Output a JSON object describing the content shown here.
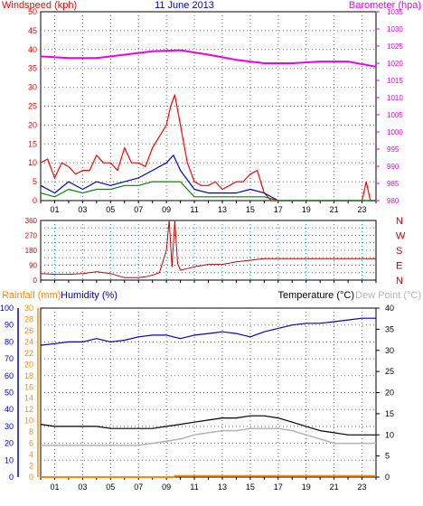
{
  "header": {
    "wind_title": "Windspeed (kph)",
    "date": "11 June 2013",
    "baro_title": "Barometer (hpa)"
  },
  "bottom_header": {
    "rain_title": "Rainfall (mm)",
    "humidity_title": "Humidity (%)",
    "temp_title": "Temperature (°C)",
    "dew_title": "Dew Point (°C)"
  },
  "hour_ticks": [
    "01",
    "03",
    "05",
    "07",
    "09",
    "11",
    "13",
    "15",
    "17",
    "19",
    "21",
    "23"
  ],
  "direction_letters": [
    "N",
    "W",
    "S",
    "E",
    "N"
  ],
  "colors": {
    "wind_gust": "#ff0000",
    "wind_avg": "#0000cc",
    "wind_min": "#008800",
    "barometer": "#ee00ee",
    "direction": "#cc0000",
    "humidity": "#0000cc",
    "temperature": "#000000",
    "dew_point": "#b4b4b4",
    "rainfall": "#ff8800",
    "grid": "#009999"
  },
  "chart_data": [
    {
      "type": "line",
      "title": "11 June 2013",
      "x_unit": "hour",
      "xlim": [
        0,
        24
      ],
      "y_left": {
        "label": "Windspeed (kph)",
        "lim": [
          0,
          50
        ],
        "ticks": [
          0,
          5,
          10,
          15,
          20,
          25,
          30,
          35,
          40,
          45,
          50
        ]
      },
      "y_right": {
        "label": "Barometer (hpa)",
        "lim": [
          980,
          1035
        ],
        "ticks": [
          980,
          985,
          990,
          995,
          1000,
          1005,
          1010,
          1015,
          1020,
          1025,
          1030,
          1035
        ]
      },
      "series": [
        {
          "name": "Windspeed (kph)",
          "role": "gust",
          "x": [
            0,
            0.5,
            1,
            1.5,
            2,
            2.5,
            3,
            3.5,
            4,
            4.5,
            5,
            5.5,
            6,
            6.5,
            7,
            7.5,
            8,
            8.5,
            9,
            9.3,
            9.6,
            10,
            10.5,
            11,
            11.5,
            12,
            12.5,
            13,
            13.5,
            14,
            14.5,
            15,
            15.5,
            16,
            16.5,
            17,
            18,
            19,
            20,
            20.5,
            21,
            21.5,
            22,
            22.5,
            23,
            23.3,
            23.6,
            24
          ],
          "y": [
            10,
            11,
            6,
            10,
            9,
            7,
            8,
            8,
            12,
            10,
            10,
            8,
            14,
            10,
            10,
            9,
            14,
            17,
            20,
            25,
            28,
            20,
            10,
            5,
            4,
            4,
            5,
            3,
            4,
            5,
            5,
            7,
            8,
            2,
            0,
            0,
            0,
            0,
            0,
            0,
            0,
            0,
            0,
            0,
            0,
            5,
            0,
            0
          ]
        },
        {
          "name": "Windspeed (kph)",
          "role": "average",
          "x": [
            0,
            1,
            2,
            3,
            4,
            5,
            6,
            7,
            8,
            9,
            9.5,
            10,
            11,
            12,
            13,
            14,
            15,
            16,
            17,
            24
          ],
          "y": [
            4,
            2,
            5,
            3,
            5,
            4,
            5,
            6,
            8,
            10,
            12,
            8,
            3,
            2,
            2,
            2,
            3,
            2,
            0,
            0
          ]
        },
        {
          "name": "Windspeed (kph)",
          "role": "lowest",
          "x": [
            0,
            1,
            2,
            3,
            4,
            5,
            6,
            7,
            8,
            9,
            10,
            11,
            12,
            13,
            14,
            15,
            16,
            17,
            24
          ],
          "y": [
            2,
            1,
            3,
            2,
            3,
            3,
            4,
            4,
            5,
            5,
            5,
            1,
            1,
            1,
            1,
            1,
            1,
            0,
            0
          ]
        },
        {
          "name": "Barometer (hpa)",
          "axis": "right",
          "x": [
            0,
            2,
            4,
            6,
            8,
            10,
            12,
            14,
            16,
            18,
            20,
            22,
            24
          ],
          "y": [
            1022,
            1021.5,
            1021.5,
            1022.5,
            1023.5,
            1023.8,
            1022.5,
            1021,
            1020,
            1020,
            1020.5,
            1020.5,
            1019
          ]
        }
      ]
    },
    {
      "type": "line",
      "title": "",
      "xlim": [
        0,
        24
      ],
      "y_left": {
        "label": "",
        "lim": [
          0,
          360
        ],
        "ticks": [
          0,
          45,
          90,
          135,
          180,
          225,
          270,
          315,
          360
        ]
      },
      "right_labels": [
        "N",
        "W",
        "S",
        "E",
        "N"
      ],
      "series": [
        {
          "name": "",
          "x": [
            0,
            1,
            2,
            3,
            4,
            5,
            6,
            7,
            7.5,
            8,
            8.5,
            9,
            9.2,
            9.4,
            9.6,
            9.8,
            10,
            10.5,
            11,
            12,
            13,
            14,
            15,
            16,
            17,
            18,
            19,
            20,
            21,
            22,
            23,
            24
          ],
          "y": [
            40,
            35,
            35,
            40,
            50,
            40,
            15,
            15,
            20,
            30,
            45,
            180,
            360,
            80,
            360,
            100,
            60,
            70,
            80,
            95,
            95,
            110,
            120,
            130,
            130,
            130,
            130,
            130,
            130,
            130,
            130,
            130
          ]
        }
      ]
    },
    {
      "type": "line",
      "title": "",
      "xlim": [
        0,
        24
      ],
      "y_left_humidity": {
        "label": "Humidity (%)",
        "lim": [
          0,
          100
        ],
        "ticks": [
          0,
          10,
          20,
          30,
          40,
          50,
          60,
          70,
          80,
          90,
          100
        ]
      },
      "y_left_rainfall": {
        "label": "Rainfall (mm)",
        "lim": [
          0,
          30
        ],
        "ticks": [
          0,
          2,
          4,
          6,
          8,
          10,
          12,
          14,
          16,
          18,
          20,
          22,
          24,
          26,
          28,
          30
        ]
      },
      "y_right": {
        "label": "Temperature (°C)",
        "lim": [
          0,
          40
        ],
        "ticks": [
          0,
          5,
          10,
          15,
          20,
          25,
          30,
          35,
          40
        ]
      },
      "series": [
        {
          "name": "Humidity (%)",
          "axis": "humidity",
          "x": [
            0,
            1,
            2,
            3,
            4,
            5,
            6,
            7,
            8,
            9,
            10,
            11,
            12,
            13,
            14,
            15,
            16,
            17,
            18,
            19,
            20,
            21,
            22,
            23,
            24
          ],
          "y": [
            78,
            79,
            80,
            80,
            82,
            80,
            81,
            83,
            84,
            84,
            82,
            84,
            85,
            86,
            85,
            83,
            86,
            88,
            90,
            91,
            91,
            92,
            93,
            94,
            94
          ]
        },
        {
          "name": "Temperature (°C)",
          "axis": "right",
          "x": [
            0,
            1,
            2,
            3,
            4,
            5,
            6,
            7,
            8,
            9,
            10,
            11,
            12,
            13,
            14,
            15,
            16,
            17,
            18,
            19,
            20,
            21,
            22,
            23,
            24
          ],
          "y": [
            12.5,
            12,
            12,
            12,
            12,
            11.5,
            11.5,
            11.5,
            11.5,
            12,
            12.5,
            13,
            13.5,
            14,
            14,
            14.5,
            14.5,
            14,
            13,
            12,
            11,
            10.5,
            10,
            10,
            10
          ]
        },
        {
          "name": "Dew Point (°C)",
          "axis": "right",
          "x": [
            0,
            1,
            2,
            3,
            4,
            5,
            6,
            7,
            8,
            9,
            10,
            11,
            12,
            13,
            14,
            15,
            16,
            17,
            18,
            19,
            20,
            21,
            22,
            23,
            24
          ],
          "y": [
            7.5,
            7.5,
            7.5,
            7.5,
            7.5,
            7.5,
            7.5,
            7.5,
            8,
            8.5,
            9,
            10,
            10.5,
            11,
            11,
            11.5,
            11.5,
            11.5,
            11,
            10,
            9,
            8,
            8,
            8,
            8
          ]
        },
        {
          "name": "Rainfall (mm)",
          "axis": "rainfall",
          "x": [
            0,
            9.5,
            9.6,
            24
          ],
          "y": [
            0,
            0,
            0.2,
            0.2
          ]
        }
      ]
    }
  ]
}
